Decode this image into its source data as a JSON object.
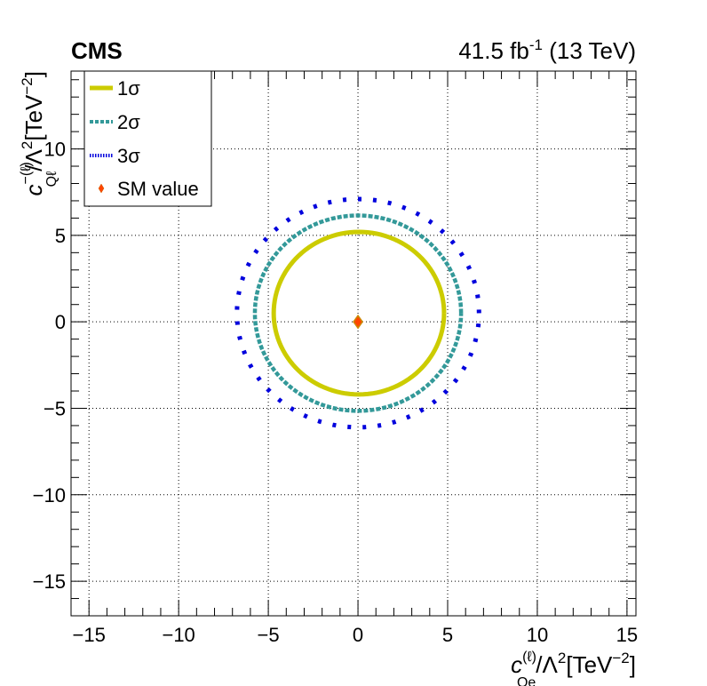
{
  "chart_data": {
    "type": "scatter",
    "experiment": "CMS",
    "luminosity_label": "41.5 fb",
    "luminosity_exponent": "-1",
    "energy_label": "(13 TeV)",
    "xlabel": {
      "c": "c",
      "sup": "(ℓ)",
      "sub": "Qe",
      "rest": "/Λ",
      "pow2": "2",
      "unit": "[TeV",
      "unit_exp": "−2",
      "close": "]"
    },
    "ylabel": {
      "c": "c",
      "sup": "−(ℓ)",
      "sub": "Qℓ",
      "rest": "/Λ",
      "pow2": "2",
      "unit": "[TeV",
      "unit_exp": "−2",
      "close": "]"
    },
    "xlim": [
      -16,
      15.5
    ],
    "ylim": [
      -17,
      14.5
    ],
    "x_ticks": [
      -15,
      -10,
      -5,
      0,
      5,
      10,
      15
    ],
    "x_tick_labels": [
      "−15",
      "−10",
      "−5",
      "0",
      "5",
      "10",
      "15"
    ],
    "y_ticks": [
      -15,
      -10,
      -5,
      0,
      5,
      10
    ],
    "y_tick_labels": [
      "−15",
      "−10",
      "−5",
      "0",
      "5",
      "10"
    ],
    "grid": true,
    "legend_position": "top-left",
    "series": [
      {
        "name": "1σ",
        "style": "solid",
        "color": "#cccc00",
        "center": [
          0.05,
          0.5
        ],
        "radius_x": 4.75,
        "radius_y": 4.7
      },
      {
        "name": "2σ",
        "style": "dashed",
        "color": "#339999",
        "center": [
          0.0,
          0.5
        ],
        "radius_x": 5.75,
        "radius_y": 5.65
      },
      {
        "name": "3σ",
        "style": "dotted",
        "color": "#0000dd",
        "center": [
          0.0,
          0.5
        ],
        "radius_x": 6.75,
        "radius_y": 6.6
      }
    ],
    "sm_point": {
      "name": "SM value",
      "x": 0,
      "y": 0,
      "color": "#ff4400"
    }
  }
}
